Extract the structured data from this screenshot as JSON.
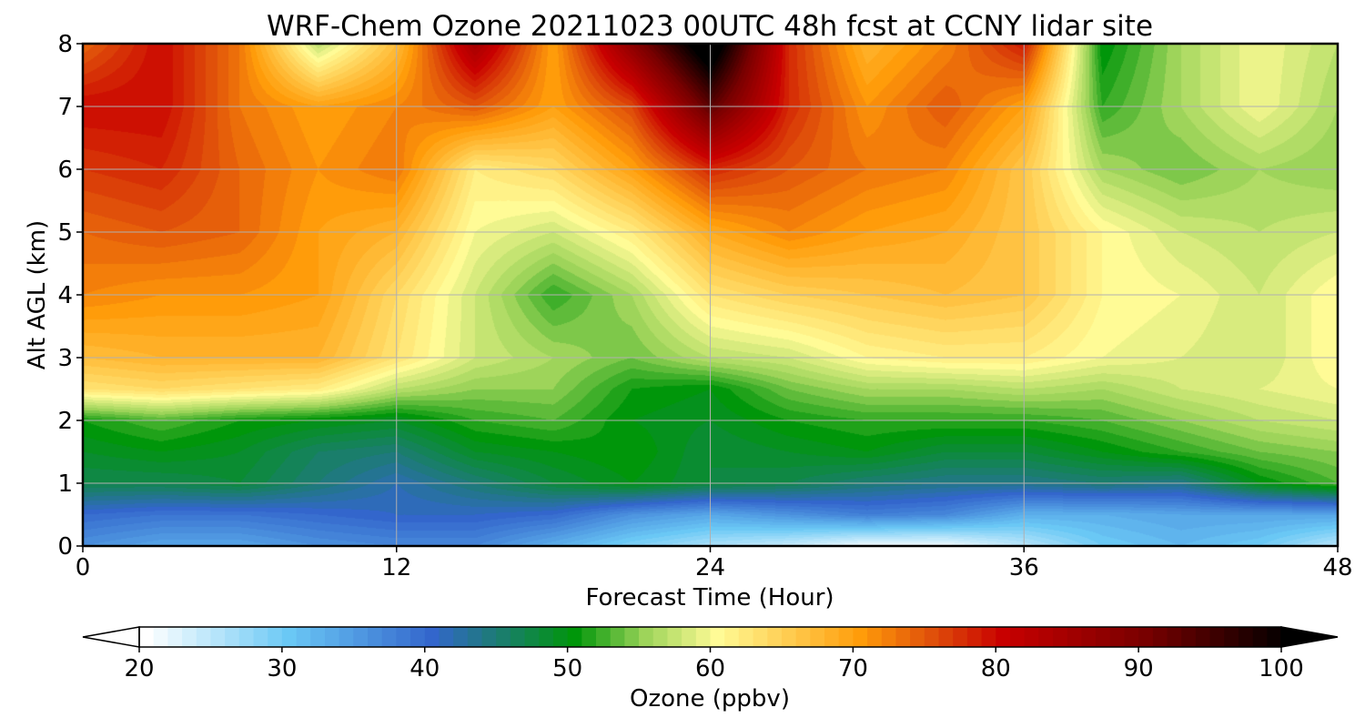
{
  "chart_data": {
    "type": "heatmap",
    "title": "WRF-Chem Ozone  20211023 00UTC 48h fcst at CCNY lidar site",
    "xlabel": "Forecast Time (Hour)",
    "ylabel": "Alt AGL (km)",
    "xlim": [
      0,
      48
    ],
    "ylim": [
      0,
      8
    ],
    "x_ticks": [
      0,
      12,
      24,
      36,
      48
    ],
    "y_ticks": [
      0,
      1,
      2,
      3,
      4,
      5,
      6,
      7,
      8
    ],
    "grid": true,
    "colorbar": {
      "label": "Ozone  (ppbv)",
      "range": [
        20,
        100
      ],
      "ticks": [
        20,
        30,
        40,
        50,
        60,
        70,
        80,
        90,
        100
      ],
      "extend": "both",
      "stops": [
        {
          "value": 20,
          "color": "#ffffff"
        },
        {
          "value": 30,
          "color": "#6ac8f5"
        },
        {
          "value": 40,
          "color": "#3366cc"
        },
        {
          "value": 50,
          "color": "#00960a"
        },
        {
          "value": 55,
          "color": "#9ed45a"
        },
        {
          "value": 60,
          "color": "#fffb96"
        },
        {
          "value": 70,
          "color": "#ff9c0a"
        },
        {
          "value": 75,
          "color": "#e0500a"
        },
        {
          "value": 80,
          "color": "#c80000"
        },
        {
          "value": 90,
          "color": "#780000"
        },
        {
          "value": 100,
          "color": "#000000"
        }
      ]
    },
    "x_hours": [
      0,
      3,
      6,
      9,
      12,
      15,
      18,
      21,
      24,
      27,
      30,
      33,
      36,
      39,
      42,
      45,
      48
    ],
    "z_km": [
      0,
      0.5,
      1,
      1.5,
      2,
      2.5,
      3,
      4,
      5,
      6,
      7,
      8
    ],
    "ozone_ppbv": [
      [
        36,
        34,
        34,
        36,
        37,
        37,
        33,
        29,
        26,
        24,
        21,
        21,
        25,
        30,
        32,
        30,
        25
      ],
      [
        40,
        39,
        39,
        40,
        41,
        41,
        40,
        36,
        34,
        36,
        38,
        37,
        33,
        33,
        34,
        34,
        34
      ],
      [
        47,
        47,
        48,
        45,
        42,
        45,
        48,
        50,
        48,
        47,
        45,
        44,
        44,
        45,
        44,
        50,
        53
      ],
      [
        49,
        50,
        49,
        46,
        45,
        49,
        50,
        51,
        48,
        49,
        50,
        48,
        48,
        50,
        52,
        54,
        55
      ],
      [
        51,
        53,
        51,
        50,
        49,
        52,
        53,
        50,
        49,
        51,
        52,
        52,
        52,
        53,
        55,
        57,
        58
      ],
      [
        63,
        64,
        63,
        62,
        57,
        55,
        55,
        51,
        50,
        54,
        56,
        56,
        57,
        56,
        58,
        59,
        60
      ],
      [
        67,
        68,
        68,
        68,
        63,
        58,
        56,
        54,
        57,
        58,
        61,
        62,
        62,
        60,
        59,
        58,
        61
      ],
      [
        72,
        71,
        71,
        70,
        64,
        58,
        52,
        56,
        63,
        65,
        66,
        67,
        66,
        61,
        60,
        58,
        61
      ],
      [
        74,
        75,
        74,
        70,
        68,
        60,
        58,
        62,
        69,
        72,
        70,
        69,
        66,
        61,
        58,
        57,
        58
      ],
      [
        77,
        78,
        74,
        71,
        73,
        62,
        64,
        70,
        78,
        75,
        73,
        72,
        66,
        56,
        54,
        56,
        55
      ],
      [
        80,
        80,
        73,
        70,
        72,
        75,
        70,
        76,
        93,
        78,
        71,
        75,
        70,
        52,
        56,
        60,
        56
      ],
      [
        74,
        80,
        73,
        57,
        67,
        85,
        70,
        88,
        105,
        78,
        68,
        72,
        79,
        50,
        56,
        60,
        57
      ]
    ]
  }
}
